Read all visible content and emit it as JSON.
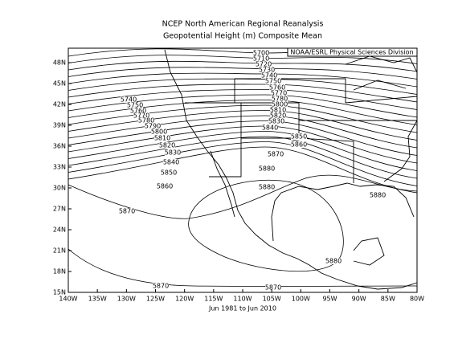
{
  "title": [
    "NCEP North American Regional Reanalysis",
    "Geopotential Height (m) Composite Mean"
  ],
  "credit": "NOAA/ESRL Physical Sciences Division",
  "period": "Jun 1981 to Jun 2010",
  "lon_labels": [
    "140W",
    "135W",
    "130W",
    "125W",
    "120W",
    "115W",
    "110W",
    "105W",
    "100W",
    "95W",
    "90W",
    "85W",
    "80W"
  ],
  "lat_labels": [
    "15N",
    "18N",
    "21N",
    "24N",
    "27N",
    "30N",
    "33N",
    "36N",
    "39N",
    "42N",
    "45N",
    "48N"
  ],
  "contour_labels": [
    5700,
    5710,
    5720,
    5730,
    5740,
    5750,
    5760,
    5770,
    5780,
    5800,
    5810,
    5820,
    5830,
    5840,
    5850,
    5860,
    5870,
    5880,
    5740,
    5750,
    5760,
    5770,
    5780,
    5790,
    5800,
    5810,
    5820,
    5830,
    5840,
    5850,
    5860,
    5870,
    5880,
    5880,
    5880,
    5870,
    5870
  ]
}
